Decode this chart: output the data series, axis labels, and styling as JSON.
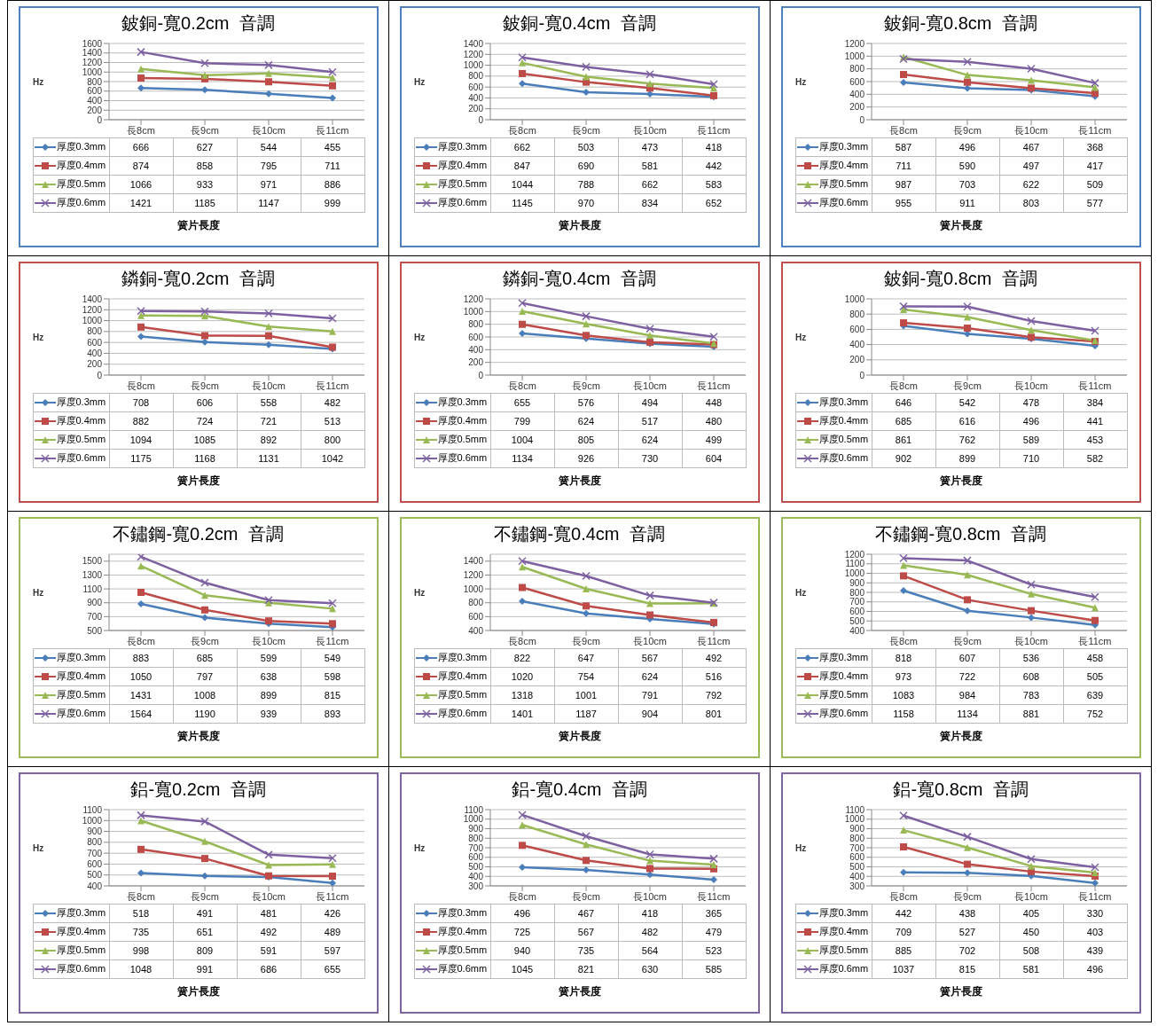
{
  "chart_data": [
    {
      "type": "line",
      "title": "鈹銅-寬0.2cm  音調",
      "ylabel": "Hz",
      "xlabel": "簧片長度",
      "categories": [
        "長8cm",
        "長9cm",
        "長10cm",
        "長11cm"
      ],
      "ylim": [
        0,
        1600
      ],
      "yticks": [
        0,
        200,
        400,
        600,
        800,
        1000,
        1200,
        1400,
        1600
      ],
      "grid": "y",
      "legend": "bottom",
      "data_labels": true,
      "series": [
        {
          "name": "厚度0.3mm",
          "color": "#4a7ebb",
          "marker": "diamond",
          "values": [
            666,
            627,
            544,
            455
          ]
        },
        {
          "name": "厚度0.4mm",
          "color": "#be4b48",
          "marker": "square",
          "values": [
            874,
            858,
            795,
            711
          ]
        },
        {
          "name": "厚度0.5mm",
          "color": "#98b954",
          "marker": "triangle",
          "values": [
            1066,
            933,
            971,
            886
          ]
        },
        {
          "name": "厚度0.6mm",
          "color": "#7d60a0",
          "marker": "cross",
          "values": [
            1421,
            1185,
            1147,
            999
          ]
        }
      ]
    },
    {
      "type": "line",
      "title": "鈹銅-寬0.4cm  音調",
      "ylabel": "Hz",
      "xlabel": "簧片長度",
      "categories": [
        "長8cm",
        "長9cm",
        "長10cm",
        "長11cm"
      ],
      "ylim": [
        0,
        1400
      ],
      "yticks": [
        0,
        200,
        400,
        600,
        800,
        1000,
        1200,
        1400
      ],
      "grid": "y",
      "legend": "bottom",
      "data_labels": true,
      "series": [
        {
          "name": "厚度0.3mm",
          "color": "#4a7ebb",
          "marker": "diamond",
          "values": [
            662,
            503,
            473,
            418
          ]
        },
        {
          "name": "厚度0.4mm",
          "color": "#be4b48",
          "marker": "square",
          "values": [
            847,
            690,
            581,
            442
          ]
        },
        {
          "name": "厚度0.5mm",
          "color": "#98b954",
          "marker": "triangle",
          "values": [
            1044,
            788,
            662,
            583
          ]
        },
        {
          "name": "厚度0.6mm",
          "color": "#7d60a0",
          "marker": "cross",
          "values": [
            1145,
            970,
            834,
            652
          ]
        }
      ]
    },
    {
      "type": "line",
      "title": "鈹銅-寬0.8cm  音調",
      "ylabel": "Hz",
      "xlabel": "簧片長度",
      "categories": [
        "長8cm",
        "長9cm",
        "長10cm",
        "長11cm"
      ],
      "ylim": [
        0,
        1200
      ],
      "yticks": [
        0,
        200,
        400,
        600,
        800,
        1000,
        1200
      ],
      "grid": "y",
      "legend": "bottom",
      "data_labels": true,
      "series": [
        {
          "name": "厚度0.3mm",
          "color": "#4a7ebb",
          "marker": "diamond",
          "values": [
            587,
            496,
            467,
            368
          ]
        },
        {
          "name": "厚度0.4mm",
          "color": "#be4b48",
          "marker": "square",
          "values": [
            711,
            590,
            497,
            417
          ]
        },
        {
          "name": "厚度0.5mm",
          "color": "#98b954",
          "marker": "triangle",
          "values": [
            987,
            703,
            622,
            509
          ]
        },
        {
          "name": "厚度0.6mm",
          "color": "#7d60a0",
          "marker": "cross",
          "values": [
            955,
            911,
            803,
            577
          ]
        }
      ]
    },
    {
      "type": "line",
      "title": "鏻銅-寬0.2cm  音調",
      "ylabel": "Hz",
      "xlabel": "簧片長度",
      "categories": [
        "長8cm",
        "長9cm",
        "長10cm",
        "長11cm"
      ],
      "ylim": [
        0,
        1400
      ],
      "yticks": [
        0,
        200,
        400,
        600,
        800,
        1000,
        1200,
        1400
      ],
      "grid": "y",
      "legend": "bottom",
      "data_labels": true,
      "series": [
        {
          "name": "厚度0.3mm",
          "color": "#4a7ebb",
          "marker": "diamond",
          "values": [
            708,
            606,
            558,
            482
          ]
        },
        {
          "name": "厚度0.4mm",
          "color": "#be4b48",
          "marker": "square",
          "values": [
            882,
            724,
            721,
            513
          ]
        },
        {
          "name": "厚度0.5mm",
          "color": "#98b954",
          "marker": "triangle",
          "values": [
            1094,
            1085,
            892,
            800
          ]
        },
        {
          "name": "厚度0.6mm",
          "color": "#7d60a0",
          "marker": "cross",
          "values": [
            1175,
            1168,
            1131,
            1042
          ]
        }
      ]
    },
    {
      "type": "line",
      "title": "鏻銅-寬0.4cm  音調",
      "ylabel": "Hz",
      "xlabel": "簧片長度",
      "categories": [
        "長8cm",
        "長9cm",
        "長10cm",
        "長11cm"
      ],
      "ylim": [
        0,
        1200
      ],
      "yticks": [
        0,
        200,
        400,
        600,
        800,
        1000,
        1200
      ],
      "grid": "y",
      "legend": "bottom",
      "data_labels": true,
      "series": [
        {
          "name": "厚度0.3mm",
          "color": "#4a7ebb",
          "marker": "diamond",
          "values": [
            655,
            576,
            494,
            448
          ]
        },
        {
          "name": "厚度0.4mm",
          "color": "#be4b48",
          "marker": "square",
          "values": [
            799,
            624,
            517,
            480
          ]
        },
        {
          "name": "厚度0.5mm",
          "color": "#98b954",
          "marker": "triangle",
          "values": [
            1004,
            805,
            624,
            499
          ]
        },
        {
          "name": "厚度0.6mm",
          "color": "#7d60a0",
          "marker": "cross",
          "values": [
            1134,
            926,
            730,
            604
          ]
        }
      ]
    },
    {
      "type": "line",
      "title": "鈹銅-寬0.8cm  音調",
      "ylabel": "Hz",
      "xlabel": "簧片長度",
      "categories": [
        "長8cm",
        "長9cm",
        "長10cm",
        "長11cm"
      ],
      "ylim": [
        0,
        1000
      ],
      "yticks": [
        0,
        200,
        400,
        600,
        800,
        1000
      ],
      "grid": "y",
      "legend": "bottom",
      "data_labels": true,
      "series": [
        {
          "name": "厚度0.3mm",
          "color": "#4a7ebb",
          "marker": "diamond",
          "values": [
            646,
            542,
            478,
            384
          ]
        },
        {
          "name": "厚度0.4mm",
          "color": "#be4b48",
          "marker": "square",
          "values": [
            685,
            616,
            496,
            441
          ]
        },
        {
          "name": "厚度0.5mm",
          "color": "#98b954",
          "marker": "triangle",
          "values": [
            861,
            762,
            589,
            453
          ]
        },
        {
          "name": "厚度0.6mm",
          "color": "#7d60a0",
          "marker": "cross",
          "values": [
            902,
            899,
            710,
            582
          ]
        }
      ]
    },
    {
      "type": "line",
      "title": "不鏽鋼-寬0.2cm  音調",
      "ylabel": "Hz",
      "xlabel": "簧片長度",
      "categories": [
        "長8cm",
        "長9cm",
        "長10cm",
        "長11cm"
      ],
      "ylim": [
        500,
        1600
      ],
      "yticks": [
        500,
        700,
        900,
        1100,
        1300,
        1500
      ],
      "grid": "y",
      "legend": "bottom",
      "data_labels": true,
      "series": [
        {
          "name": "厚度0.3mm",
          "color": "#4a7ebb",
          "marker": "diamond",
          "values": [
            883,
            685,
            599,
            549
          ]
        },
        {
          "name": "厚度0.4mm",
          "color": "#be4b48",
          "marker": "square",
          "values": [
            1050,
            797,
            638,
            598
          ]
        },
        {
          "name": "厚度0.5mm",
          "color": "#98b954",
          "marker": "triangle",
          "values": [
            1431,
            1008,
            899,
            815
          ]
        },
        {
          "name": "厚度0.6mm",
          "color": "#7d60a0",
          "marker": "cross",
          "values": [
            1564,
            1190,
            939,
            893
          ]
        }
      ]
    },
    {
      "type": "line",
      "title": "不鏽鋼-寬0.4cm  音調",
      "ylabel": "Hz",
      "xlabel": "簧片長度",
      "categories": [
        "長8cm",
        "長9cm",
        "長10cm",
        "長11cm"
      ],
      "ylim": [
        400,
        1500
      ],
      "yticks": [
        400,
        600,
        800,
        1000,
        1200,
        1400
      ],
      "grid": "y",
      "legend": "bottom",
      "data_labels": true,
      "series": [
        {
          "name": "厚度0.3mm",
          "color": "#4a7ebb",
          "marker": "diamond",
          "values": [
            822,
            647,
            567,
            492
          ]
        },
        {
          "name": "厚度0.4mm",
          "color": "#be4b48",
          "marker": "square",
          "values": [
            1020,
            754,
            624,
            516
          ]
        },
        {
          "name": "厚度0.5mm",
          "color": "#98b954",
          "marker": "triangle",
          "values": [
            1318,
            1001,
            791,
            792
          ]
        },
        {
          "name": "厚度0.6mm",
          "color": "#7d60a0",
          "marker": "cross",
          "values": [
            1401,
            1187,
            904,
            801
          ]
        }
      ]
    },
    {
      "type": "line",
      "title": "不鏽鋼-寬0.8cm  音調",
      "ylabel": "Hz",
      "xlabel": "簧片長度",
      "categories": [
        "長8cm",
        "長9cm",
        "長10cm",
        "長11cm"
      ],
      "ylim": [
        400,
        1200
      ],
      "yticks": [
        400,
        500,
        600,
        700,
        800,
        900,
        1000,
        1100,
        1200
      ],
      "grid": "y",
      "legend": "bottom",
      "data_labels": true,
      "series": [
        {
          "name": "厚度0.3mm",
          "color": "#4a7ebb",
          "marker": "diamond",
          "values": [
            818,
            607,
            536,
            458
          ]
        },
        {
          "name": "厚度0.4mm",
          "color": "#be4b48",
          "marker": "square",
          "values": [
            973,
            722,
            608,
            505
          ]
        },
        {
          "name": "厚度0.5mm",
          "color": "#98b954",
          "marker": "triangle",
          "values": [
            1083,
            984,
            783,
            639
          ]
        },
        {
          "name": "厚度0.6mm",
          "color": "#7d60a0",
          "marker": "cross",
          "values": [
            1158,
            1134,
            881,
            752
          ]
        }
      ]
    },
    {
      "type": "line",
      "title": "鋁-寬0.2cm  音調",
      "ylabel": "Hz",
      "xlabel": "簧片長度",
      "categories": [
        "長8cm",
        "長9cm",
        "長10cm",
        "長11cm"
      ],
      "ylim": [
        400,
        1100
      ],
      "yticks": [
        400,
        500,
        600,
        700,
        800,
        900,
        1000,
        1100
      ],
      "grid": "y",
      "legend": "bottom",
      "data_labels": true,
      "series": [
        {
          "name": "厚度0.3mm",
          "color": "#4a7ebb",
          "marker": "diamond",
          "values": [
            518,
            491,
            481,
            426
          ]
        },
        {
          "name": "厚度0.4mm",
          "color": "#be4b48",
          "marker": "square",
          "values": [
            735,
            651,
            492,
            489
          ]
        },
        {
          "name": "厚度0.5mm",
          "color": "#98b954",
          "marker": "triangle",
          "values": [
            998,
            809,
            591,
            597
          ]
        },
        {
          "name": "厚度0.6mm",
          "color": "#7d60a0",
          "marker": "cross",
          "values": [
            1048,
            991,
            686,
            655
          ]
        }
      ]
    },
    {
      "type": "line",
      "title": "鋁-寬0.4cm  音調",
      "ylabel": "Hz",
      "xlabel": "簧片長度",
      "categories": [
        "長8cm",
        "長9cm",
        "長10cm",
        "長11cm"
      ],
      "ylim": [
        300,
        1100
      ],
      "yticks": [
        300,
        400,
        500,
        600,
        700,
        800,
        900,
        1000,
        1100
      ],
      "grid": "y",
      "legend": "bottom",
      "data_labels": true,
      "series": [
        {
          "name": "厚度0.3mm",
          "color": "#4a7ebb",
          "marker": "diamond",
          "values": [
            496,
            467,
            418,
            365
          ]
        },
        {
          "name": "厚度0.4mm",
          "color": "#be4b48",
          "marker": "square",
          "values": [
            725,
            567,
            482,
            479
          ]
        },
        {
          "name": "厚度0.5mm",
          "color": "#98b954",
          "marker": "triangle",
          "values": [
            940,
            735,
            564,
            523
          ]
        },
        {
          "name": "厚度0.6mm",
          "color": "#7d60a0",
          "marker": "cross",
          "values": [
            1045,
            821,
            630,
            585
          ]
        }
      ]
    },
    {
      "type": "line",
      "title": "鋁-寬0.8cm  音調",
      "ylabel": "Hz",
      "xlabel": "簧片長度",
      "categories": [
        "長8cm",
        "長9cm",
        "長10cm",
        "長11cm"
      ],
      "ylim": [
        300,
        1100
      ],
      "yticks": [
        300,
        400,
        500,
        600,
        700,
        800,
        900,
        1000,
        1100
      ],
      "grid": "y",
      "legend": "bottom",
      "data_labels": true,
      "series": [
        {
          "name": "厚度0.3mm",
          "color": "#4a7ebb",
          "marker": "diamond",
          "values": [
            442,
            438,
            405,
            330
          ]
        },
        {
          "name": "厚度0.4mm",
          "color": "#be4b48",
          "marker": "square",
          "values": [
            709,
            527,
            450,
            403
          ]
        },
        {
          "name": "厚度0.5mm",
          "color": "#98b954",
          "marker": "triangle",
          "values": [
            885,
            702,
            508,
            439
          ]
        },
        {
          "name": "厚度0.6mm",
          "color": "#7d60a0",
          "marker": "cross",
          "values": [
            1037,
            815,
            581,
            496
          ]
        }
      ]
    }
  ]
}
